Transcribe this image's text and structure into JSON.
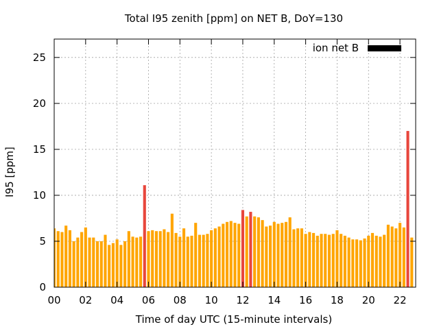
{
  "chart_data": {
    "type": "bar",
    "title": "Total I95 zenith [ppm] on NET B, DoY=130",
    "xlabel": "Time of day UTC (15-minute intervals)",
    "ylabel": "I95 [ppm]",
    "xlim": [
      0,
      23
    ],
    "ylim": [
      0,
      27
    ],
    "xticks": [
      "00",
      "02",
      "04",
      "06",
      "08",
      "10",
      "12",
      "14",
      "16",
      "18",
      "20",
      "22"
    ],
    "yticks": [
      "0",
      "5",
      "10",
      "15",
      "20",
      "25"
    ],
    "grid": true,
    "legend": {
      "label": "ion net B",
      "position": "top-right"
    },
    "colors": {
      "normal": "#ffa500",
      "highlight": "#e8463c",
      "legend_swatch": "#000000"
    },
    "bar_interval_hours": 0.25,
    "values": [
      6.4,
      6.1,
      6.0,
      6.7,
      6.2,
      5.0,
      5.4,
      6.0,
      6.5,
      5.4,
      5.4,
      5.0,
      5.0,
      5.7,
      4.6,
      4.8,
      5.2,
      4.6,
      5.0,
      6.1,
      5.5,
      5.4,
      5.5,
      11.1,
      6.1,
      6.2,
      6.1,
      6.1,
      6.3,
      6.0,
      8.0,
      5.9,
      5.5,
      6.4,
      5.5,
      5.6,
      7.0,
      5.7,
      5.7,
      5.8,
      6.2,
      6.4,
      6.6,
      6.9,
      7.1,
      7.2,
      7.0,
      6.9,
      8.4,
      7.7,
      8.2,
      7.7,
      7.6,
      7.3,
      6.6,
      6.7,
      7.1,
      6.9,
      7.0,
      7.1,
      7.6,
      6.3,
      6.4,
      6.4,
      5.8,
      6.0,
      5.9,
      5.6,
      5.8,
      5.8,
      5.7,
      5.8,
      6.2,
      5.8,
      5.6,
      5.4,
      5.2,
      5.2,
      5.1,
      5.3,
      5.6,
      5.9,
      5.6,
      5.5,
      5.7,
      6.8,
      6.6,
      6.4,
      7.0,
      6.5,
      17.0,
      5.4
    ],
    "highlight": [
      false,
      false,
      false,
      false,
      false,
      false,
      false,
      false,
      false,
      false,
      false,
      false,
      false,
      false,
      false,
      false,
      false,
      false,
      false,
      false,
      false,
      false,
      false,
      true,
      false,
      false,
      false,
      false,
      false,
      false,
      false,
      false,
      false,
      false,
      false,
      false,
      false,
      false,
      false,
      false,
      false,
      false,
      false,
      false,
      false,
      false,
      false,
      false,
      true,
      false,
      true,
      false,
      false,
      false,
      false,
      false,
      false,
      false,
      false,
      false,
      false,
      false,
      false,
      false,
      false,
      false,
      false,
      false,
      false,
      false,
      false,
      false,
      false,
      false,
      false,
      false,
      false,
      false,
      false,
      false,
      false,
      false,
      false,
      false,
      false,
      false,
      false,
      false,
      false,
      false,
      true,
      false
    ]
  }
}
